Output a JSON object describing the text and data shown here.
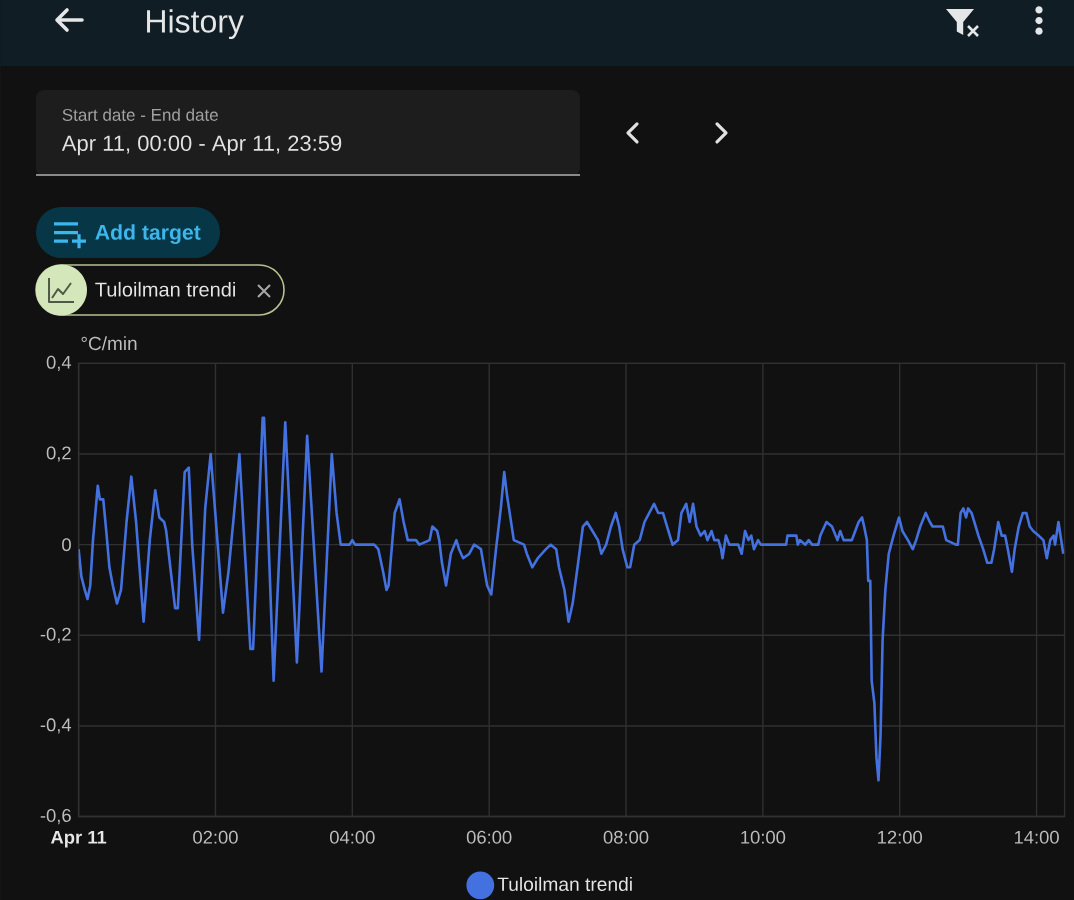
{
  "chart_data": {
    "type": "line",
    "title": "History",
    "subtitle": "Apr 11, 00:00 - Apr 11, 23:59",
    "ylabel": "°C/min",
    "annotations": [
      "Start date - End date",
      "Add target",
      "Tuloilman trendi"
    ],
    "x": [
      0,
      0.04,
      0.09,
      0.13,
      0.17,
      0.21,
      0.28,
      0.31,
      0.36,
      0.41,
      0.45,
      0.5,
      0.56,
      0.62,
      0.7,
      0.77,
      0.84,
      0.95,
      1.04,
      1.12,
      1.18,
      1.25,
      1.28,
      1.34,
      1.41,
      1.45,
      1.55,
      1.61,
      1.66,
      1.76,
      1.85,
      1.93,
      2.11,
      2.19,
      2.26,
      2.35,
      2.51,
      2.55,
      2.69,
      2.71,
      2.85,
      3.02,
      3.19,
      3.34,
      3.55,
      3.7,
      3.77,
      3.83,
      3.96,
      4,
      4.04,
      4.32,
      4.38,
      4.45,
      4.5,
      4.53,
      4.62,
      4.69,
      4.75,
      4.81,
      4.93,
      4.98,
      5.13,
      5.17,
      5.24,
      5.27,
      5.31,
      5.37,
      5.44,
      5.52,
      5.56,
      5.62,
      5.71,
      5.78,
      5.88,
      5.97,
      6.03,
      6.1,
      6.17,
      6.22,
      6.26,
      6.32,
      6.36,
      6.51,
      6.55,
      6.63,
      6.71,
      6.83,
      6.9,
      6.98,
      7.02,
      7.1,
      7.16,
      7.22,
      7.3,
      7.37,
      7.43,
      7.51,
      7.59,
      7.64,
      7.71,
      7.78,
      7.85,
      7.9,
      7.95,
      8.02,
      8.06,
      8.12,
      8.2,
      8.27,
      8.34,
      8.41,
      8.47,
      8.54,
      8.6,
      8.68,
      8.76,
      8.81,
      8.88,
      8.93,
      8.98,
      9.03,
      9.09,
      9.15,
      9.19,
      9.25,
      9.29,
      9.35,
      9.39,
      9.41,
      9.46,
      9.51,
      9.64,
      9.69,
      9.74,
      9.79,
      9.83,
      9.87,
      9.93,
      9.97,
      10.34,
      10.36,
      10.49,
      10.51,
      10.54,
      10.62,
      10.67,
      10.72,
      10.81,
      10.84,
      10.93,
      11.01,
      11.09,
      11.13,
      11.18,
      11.25,
      11.3,
      11.35,
      11.4,
      11.45,
      11.48,
      11.52,
      11.54,
      11.57,
      11.59,
      11.63,
      11.66,
      11.69,
      11.72,
      11.75,
      11.79,
      11.84,
      11.91,
      11.99,
      12.04,
      12.12,
      12.19,
      12.24,
      12.3,
      12.38,
      12.44,
      12.48,
      12.53,
      12.58,
      12.63,
      12.68,
      12.82,
      12.85,
      12.89,
      12.93,
      12.97,
      13,
      13.05,
      13.09,
      13.15,
      13.22,
      13.28,
      13.34,
      13.38,
      13.44,
      13.49,
      13.54,
      13.58,
      13.64,
      13.68,
      13.74,
      13.8,
      13.85,
      13.9,
      13.95,
      14.03,
      14.1,
      14.15,
      14.2,
      14.25,
      14.27,
      14.32,
      14.36,
      14.39
    ],
    "series": [
      {
        "name": "Tuloilman trendi",
        "color": "#4471e0",
        "values": [
          -0.01,
          -0.07,
          -0.1,
          -0.12,
          -0.09,
          0.01,
          0.13,
          0.1,
          0.1,
          0.02,
          -0.05,
          -0.09,
          -0.13,
          -0.1,
          0.05,
          0.15,
          0.05,
          -0.17,
          0.01,
          0.12,
          0.06,
          0.05,
          0.03,
          -0.05,
          -0.14,
          -0.14,
          0.16,
          0.17,
          0,
          -0.21,
          0.08,
          0.2,
          -0.15,
          -0.06,
          0.05,
          0.2,
          -0.23,
          -0.23,
          0.28,
          0.28,
          -0.3,
          0.27,
          -0.26,
          0.24,
          -0.28,
          0.2,
          0.07,
          0,
          0,
          0.01,
          0,
          0,
          -0.01,
          -0.06,
          -0.1,
          -0.09,
          0.07,
          0.1,
          0.05,
          0.01,
          0.01,
          0,
          0.01,
          0.04,
          0.03,
          0.01,
          -0.04,
          -0.09,
          -0.02,
          0.01,
          -0.01,
          -0.03,
          -0.02,
          0,
          -0.01,
          -0.09,
          -0.11,
          -0.01,
          0.08,
          0.16,
          0.11,
          0.05,
          0.01,
          0,
          -0.02,
          -0.05,
          -0.03,
          -0.01,
          0,
          -0.01,
          -0.05,
          -0.1,
          -0.17,
          -0.13,
          -0.04,
          0.04,
          0.05,
          0.03,
          0.01,
          -0.02,
          0,
          0.04,
          0.07,
          0.04,
          -0.01,
          -0.05,
          -0.05,
          0,
          0.01,
          0.05,
          0.07,
          0.09,
          0.07,
          0.07,
          0.04,
          0,
          0.01,
          0.07,
          0.09,
          0.05,
          0.09,
          0.04,
          0.02,
          0.03,
          0.01,
          0.03,
          0.01,
          0.01,
          -0.01,
          -0.03,
          0.02,
          0,
          0,
          -0.02,
          0.03,
          0.01,
          0.02,
          -0.01,
          0.01,
          0,
          0,
          0.02,
          0.02,
          0,
          0.01,
          0,
          0.01,
          0,
          0,
          0.02,
          0.05,
          0.04,
          0.01,
          0.03,
          0.01,
          0.01,
          0.01,
          0.03,
          0.05,
          0.06,
          0.04,
          0.01,
          -0.08,
          -0.08,
          -0.3,
          -0.35,
          -0.47,
          -0.52,
          -0.42,
          -0.21,
          -0.1,
          -0.02,
          0.02,
          0.06,
          0.03,
          0.01,
          -0.01,
          0.01,
          0.04,
          0.07,
          0.05,
          0.04,
          0.04,
          0.04,
          0.04,
          0.01,
          0,
          0,
          0.07,
          0.08,
          0.06,
          0.08,
          0.07,
          0.05,
          0.02,
          -0.01,
          -0.04,
          -0.04,
          -0.01,
          0.05,
          0.02,
          0.02,
          -0.01,
          -0.06,
          -0.01,
          0.04,
          0.07,
          0.07,
          0.04,
          0.03,
          0.02,
          0.01,
          -0.03,
          0.01,
          0.02,
          0,
          0.05,
          0.01,
          -0.02
        ]
      }
    ],
    "xlim": [
      0,
      14.41
    ],
    "xticks": [
      {
        "value": 0,
        "label": "Apr 11"
      },
      {
        "value": 2,
        "label": "02:00"
      },
      {
        "value": 4,
        "label": "04:00"
      },
      {
        "value": 6,
        "label": "06:00"
      },
      {
        "value": 8,
        "label": "08:00"
      },
      {
        "value": 10,
        "label": "10:00"
      },
      {
        "value": 12,
        "label": "12:00"
      },
      {
        "value": 14,
        "label": "14:00"
      }
    ],
    "ylim": [
      -0.6,
      0.4
    ],
    "yticks": [
      {
        "value": -0.6,
        "label": "-0,6"
      },
      {
        "value": -0.4,
        "label": "-0,4"
      },
      {
        "value": -0.2,
        "label": "-0,2"
      },
      0,
      {
        "value": 0.2,
        "label": "0,2"
      },
      {
        "value": 0.4,
        "label": "0,4"
      }
    ],
    "grid": true,
    "legend": "bottom"
  }
}
